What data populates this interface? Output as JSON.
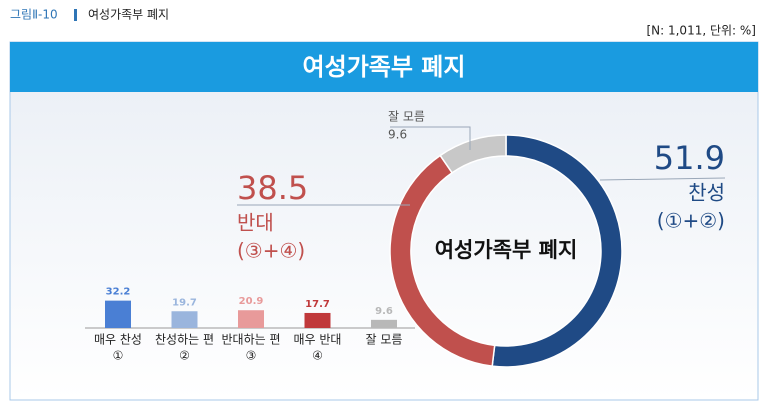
{
  "header": {
    "figure_label": "그림Ⅱ-10",
    "title": "여성가족부 폐지",
    "note": "[N: 1,011, 단위: %]"
  },
  "chart_data": [
    {
      "type": "donut",
      "title": "여성가족부 폐지",
      "center_label": "여성가족부 폐지",
      "categories": [
        "찬성",
        "반대",
        "잘 모름"
      ],
      "sublabels": [
        "(①+②)",
        "(③+④)",
        null
      ],
      "values": [
        51.9,
        38.5,
        9.6
      ],
      "colors": [
        "#1f4a85",
        "#c0504d",
        "#c8c8c8"
      ]
    },
    {
      "type": "bar",
      "categories": [
        [
          "매우 찬성",
          "①"
        ],
        [
          "찬성하는 편",
          "②"
        ],
        [
          "반대하는 편",
          "③"
        ],
        [
          "매우 반대",
          "④"
        ],
        [
          "잘 모름"
        ]
      ],
      "values": [
        32.2,
        19.7,
        20.9,
        17.7,
        9.6
      ],
      "colors": [
        "#4a7fd4",
        "#9ab5dd",
        "#e89a9a",
        "#c0393b",
        "#b8b8b8"
      ]
    }
  ]
}
